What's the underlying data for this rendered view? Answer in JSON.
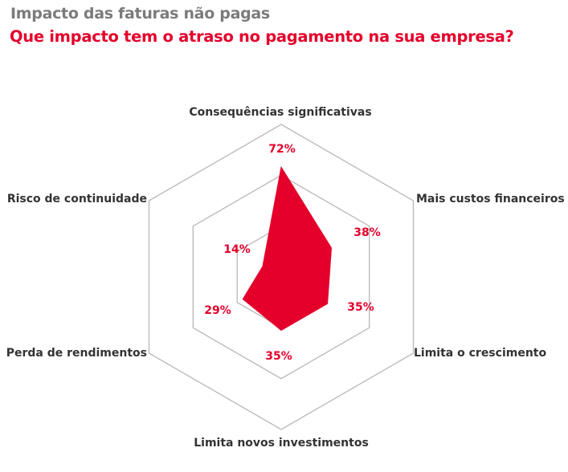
{
  "header": {
    "title": "Impacto das faturas não pagas",
    "subtitle": "Que impacto tem o atraso no pagamento na sua empresa?"
  },
  "colors": {
    "accent": "#e4002b",
    "grid": "#b8b8b8",
    "title_gray": "#7b7b7b",
    "label_text": "#333333"
  },
  "chart_data": {
    "type": "radar",
    "title": "Impacto das faturas não pagas",
    "subtitle": "Que impacto tem o atraso no pagamento na sua empresa?",
    "categories": [
      "Consequências significativas",
      "Mais custos financeiros",
      "Limita o crescimento",
      "Limita novos investimentos",
      "Perda de rendimentos",
      "Risco de continuidade"
    ],
    "values": [
      72,
      38,
      35,
      35,
      29,
      14
    ],
    "value_labels": [
      "72%",
      "38%",
      "35%",
      "35%",
      "29%",
      "14%"
    ],
    "unit": "%",
    "range": [
      0,
      100
    ],
    "grid_levels": 3,
    "grid": true,
    "legend": "none"
  }
}
